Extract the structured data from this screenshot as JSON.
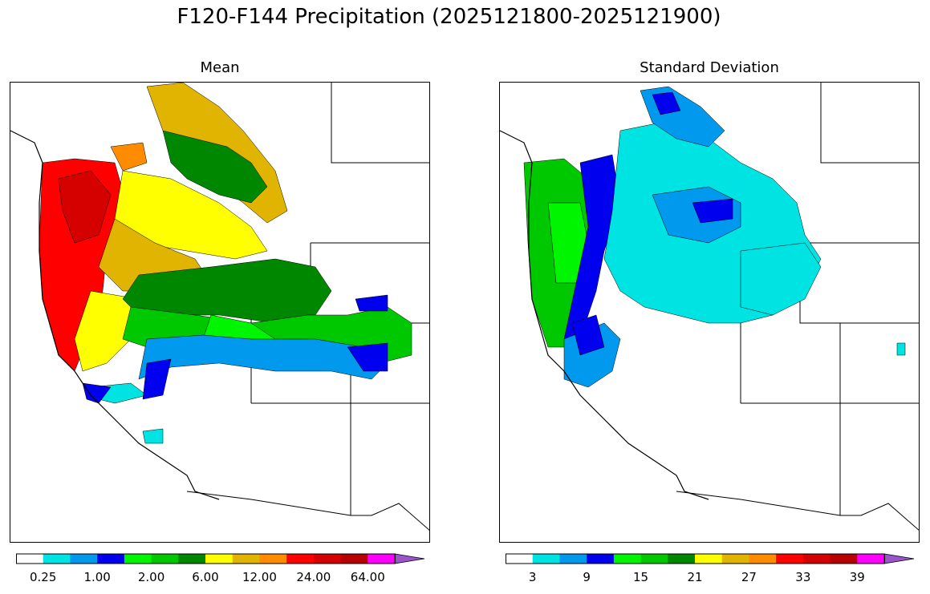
{
  "title": "F120-F144 Precipitation (2025121800-2025121900)",
  "panels": [
    {
      "id": "mean",
      "title": "Mean"
    },
    {
      "id": "stddev",
      "title": "Standard Deviation"
    }
  ],
  "colorbar_colors": [
    "#ffffff",
    "#00e3e3",
    "#0099ee",
    "#0000ee",
    "#00f500",
    "#00c800",
    "#008700",
    "#ffff00",
    "#e0b400",
    "#ff8c00",
    "#ff0000",
    "#d50000",
    "#b90000",
    "#ff00ff",
    "#9955c9"
  ],
  "mean_colorbar": {
    "ticks": [
      "0.25",
      "1.00",
      "2.00",
      "6.00",
      "12.00",
      "24.00",
      "64.00"
    ],
    "extend": "max"
  },
  "stddev_colorbar": {
    "ticks": [
      "3",
      "9",
      "15",
      "21",
      "27",
      "33",
      "39"
    ],
    "extend": "max"
  }
}
